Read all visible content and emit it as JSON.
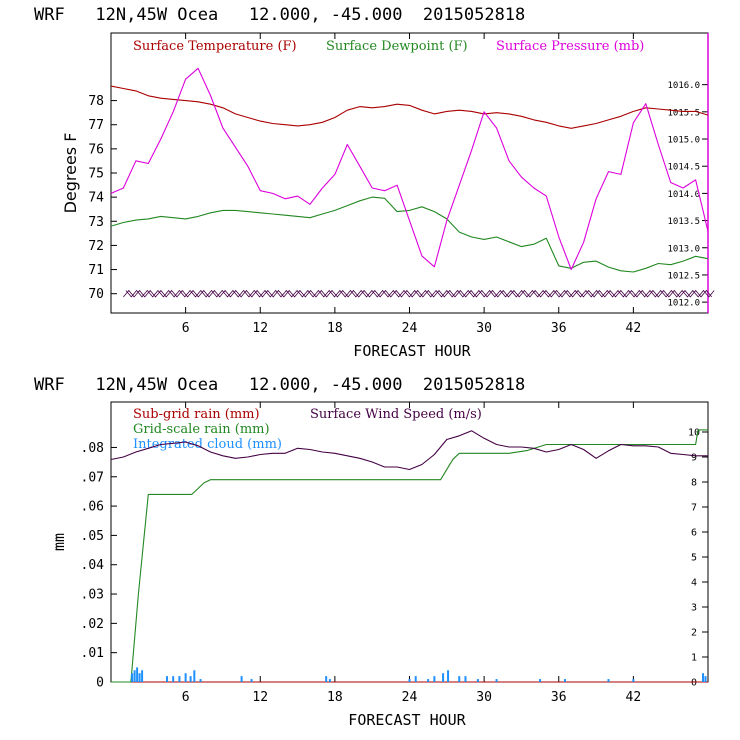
{
  "colors": {
    "temp": "#aa0000",
    "dew": "#228822",
    "pres": "#dd00dd",
    "wind": "#440044",
    "subgrid": "#aa0000",
    "grid": "#228822",
    "cloud": "#1e90ff",
    "axis": "#000000",
    "right_axis_top": "#dd00dd"
  },
  "chart_data": [
    {
      "type": "line",
      "title": "WRF   12N,45W Ocea   12.000, -45.000  2015052818",
      "xlabel": "FORECAST HOUR",
      "ylabel": "Degrees F",
      "xlim": [
        0,
        48
      ],
      "ylim": [
        69.2,
        80.8
      ],
      "y2lim": [
        1011.8,
        1016.95
      ],
      "xticks": [
        "6",
        "12",
        "18",
        "24",
        "30",
        "36",
        "42"
      ],
      "xtick_values": [
        6,
        12,
        18,
        24,
        30,
        36,
        42
      ],
      "yticks": [
        "70",
        "71",
        "72",
        "73",
        "74",
        "75",
        "76",
        "77",
        "78"
      ],
      "ytick_values": [
        70,
        71,
        72,
        73,
        74,
        75,
        76,
        77,
        78
      ],
      "y2ticks": [
        "1012.0",
        "1012.5",
        "1013.0",
        "1013.5",
        "1014.0",
        "1014.5",
        "1015.0",
        "1015.5",
        "1016.0"
      ],
      "y2tick_values": [
        1012.0,
        1012.5,
        1013.0,
        1013.5,
        1014.0,
        1014.5,
        1015.0,
        1015.5,
        1016.0
      ],
      "legend": {
        "temp": "Surface Temperature (F)",
        "dew": "Surface Dewpoint (F)",
        "pres": "Surface Pressure (mb)"
      },
      "x": [
        0,
        1,
        2,
        3,
        4,
        5,
        6,
        7,
        8,
        9,
        10,
        11,
        12,
        13,
        14,
        15,
        16,
        17,
        18,
        19,
        20,
        21,
        22,
        23,
        24,
        25,
        26,
        27,
        28,
        29,
        30,
        31,
        32,
        33,
        34,
        35,
        36,
        37,
        38,
        39,
        40,
        41,
        42,
        43,
        44,
        45,
        46,
        47,
        48
      ],
      "series": [
        {
          "name": "Surface Temperature (F)",
          "axis": "left",
          "values": [
            78.6,
            78.5,
            78.4,
            78.2,
            78.1,
            78.05,
            78,
            77.95,
            77.85,
            77.7,
            77.45,
            77.3,
            77.15,
            77.05,
            77,
            76.95,
            77,
            77.1,
            77.3,
            77.6,
            77.75,
            77.7,
            77.75,
            77.85,
            77.8,
            77.6,
            77.45,
            77.55,
            77.6,
            77.55,
            77.45,
            77.5,
            77.45,
            77.35,
            77.2,
            77.1,
            76.95,
            76.85,
            76.95,
            77.05,
            77.2,
            77.35,
            77.55,
            77.7,
            77.65,
            77.6,
            77.55,
            77.55,
            77.4
          ]
        },
        {
          "name": "Surface Dewpoint (F)",
          "axis": "left",
          "values": [
            72.8,
            72.95,
            73.05,
            73.1,
            73.2,
            73.15,
            73.1,
            73.2,
            73.35,
            73.45,
            73.45,
            73.4,
            73.35,
            73.3,
            73.25,
            73.2,
            73.15,
            73.3,
            73.45,
            73.65,
            73.85,
            74,
            73.95,
            73.4,
            73.45,
            73.6,
            73.4,
            73.1,
            72.55,
            72.35,
            72.25,
            72.35,
            72.15,
            71.95,
            72.05,
            72.3,
            71.15,
            71.05,
            71.3,
            71.35,
            71.1,
            70.95,
            70.9,
            71.05,
            71.25,
            71.2,
            71.35,
            71.55,
            71.45
          ]
        },
        {
          "name": "Surface Pressure (mb)",
          "axis": "right",
          "values": [
            1014,
            1014.1,
            1014.6,
            1014.55,
            1015,
            1015.5,
            1016.1,
            1016.3,
            1015.8,
            1015.2,
            1014.85,
            1014.5,
            1014.05,
            1014,
            1013.9,
            1013.95,
            1013.8,
            1014.1,
            1014.35,
            1014.9,
            1014.5,
            1014.1,
            1014.05,
            1014.15,
            1013.5,
            1012.85,
            1012.65,
            1013.5,
            1014.15,
            1014.8,
            1015.5,
            1015.2,
            1014.6,
            1014.3,
            1014.1,
            1013.95,
            1013.2,
            1012.6,
            1013.1,
            1013.9,
            1014.4,
            1014.35,
            1015.3,
            1015.65,
            1014.9,
            1014.2,
            1014.1,
            1014.25,
            1013.3
          ]
        }
      ]
    },
    {
      "type": "line",
      "title": "WRF   12N,45W Ocea   12.000, -45.000  2015052818",
      "xlabel": "FORECAST HOUR",
      "ylabel": "mm",
      "xlim": [
        0,
        48
      ],
      "ylim": [
        0,
        0.0955
      ],
      "y2lim": [
        0,
        11.2
      ],
      "xticks": [
        "6",
        "12",
        "18",
        "24",
        "30",
        "36",
        "42"
      ],
      "xtick_values": [
        6,
        12,
        18,
        24,
        30,
        36,
        42
      ],
      "yticks": [
        "0",
        ".01",
        ".02",
        ".03",
        ".04",
        ".05",
        ".06",
        ".07",
        ".08"
      ],
      "ytick_values": [
        0,
        0.01,
        0.02,
        0.03,
        0.04,
        0.05,
        0.06,
        0.07,
        0.08
      ],
      "y2ticks": [
        "0",
        "1",
        "2",
        "3",
        "4",
        "5",
        "6",
        "7",
        "8",
        "9",
        "10"
      ],
      "y2tick_values": [
        0,
        1,
        2,
        3,
        4,
        5,
        6,
        7,
        8,
        9,
        10
      ],
      "legend": {
        "subgrid": "Sub-grid rain (mm)",
        "grid": "Grid-scale rain (mm)",
        "cloud": "Integrated cloud (mm)",
        "wind": "Surface Wind Speed (m/s)"
      },
      "series": [
        {
          "name": "Sub-grid rain (mm)",
          "axis": "left",
          "x": [
            0,
            48
          ],
          "values": [
            0,
            0
          ]
        },
        {
          "name": "Grid-scale rain (mm)",
          "axis": "left",
          "step": true,
          "x": [
            0,
            1.6,
            2.2,
            3,
            6.5,
            7.5,
            8,
            26.5,
            27.5,
            28,
            32,
            33.5,
            35,
            47,
            47.2,
            48
          ],
          "values": [
            0,
            0,
            0.03,
            0.064,
            0.064,
            0.068,
            0.069,
            0.069,
            0.076,
            0.078,
            0.078,
            0.079,
            0.081,
            0.081,
            0.086,
            0.086
          ]
        },
        {
          "name": "Surface Wind Speed (m/s)",
          "axis": "right",
          "x": [
            0,
            1,
            2,
            3,
            4,
            5,
            6,
            7,
            8,
            9,
            10,
            11,
            12,
            13,
            14,
            15,
            16,
            17,
            18,
            19,
            20,
            21,
            22,
            23,
            24,
            25,
            26,
            27,
            28,
            29,
            30,
            31,
            32,
            33,
            34,
            35,
            36,
            37,
            38,
            39,
            40,
            41,
            42,
            43,
            44,
            45,
            46,
            47,
            48
          ],
          "values": [
            8.9,
            9,
            9.2,
            9.35,
            9.5,
            9.55,
            9.6,
            9.45,
            9.2,
            9.05,
            8.95,
            9,
            9.1,
            9.15,
            9.15,
            9.35,
            9.3,
            9.2,
            9.15,
            9.05,
            8.95,
            8.8,
            8.6,
            8.6,
            8.5,
            8.7,
            9.1,
            9.7,
            9.85,
            10.05,
            9.75,
            9.5,
            9.4,
            9.4,
            9.35,
            9.2,
            9.3,
            9.5,
            9.3,
            8.95,
            9.25,
            9.5,
            9.45,
            9.45,
            9.4,
            9.15,
            9.1,
            9.05,
            9.05
          ]
        },
        {
          "name": "Integrated cloud (mm)",
          "axis": "left",
          "bars": true,
          "x": [
            1.7,
            1.9,
            2.1,
            2.3,
            2.5,
            4.5,
            5.0,
            5.5,
            6.0,
            6.4,
            6.7,
            7.2,
            10.5,
            11.3,
            17.3,
            17.6,
            24.0,
            24.5,
            25.5,
            26.0,
            26.7,
            27.1,
            28.0,
            28.5,
            29.5,
            31.0,
            34.5,
            36.5,
            40.0,
            42.0,
            47.6,
            47.8
          ],
          "values": [
            0.003,
            0.004,
            0.005,
            0.003,
            0.004,
            0.002,
            0.002,
            0.002,
            0.003,
            0.002,
            0.004,
            0.001,
            0.002,
            0.001,
            0.002,
            0.001,
            0.001,
            0.002,
            0.001,
            0.002,
            0.003,
            0.004,
            0.002,
            0.002,
            0.001,
            0.001,
            0.001,
            0.001,
            0.001,
            0.001,
            0.003,
            0.002
          ]
        }
      ]
    }
  ]
}
